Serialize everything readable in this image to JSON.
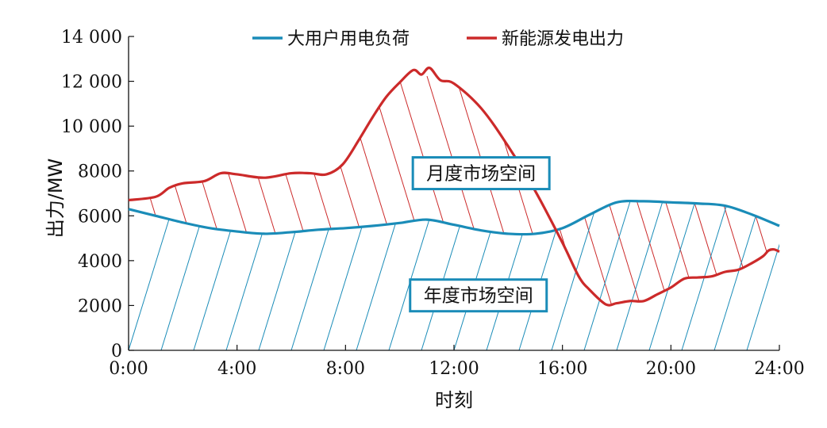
{
  "chart_data": {
    "type": "line",
    "xlabel": "时刻",
    "ylabel": "出力/MW",
    "xlim": [
      0,
      24
    ],
    "ylim": [
      0,
      14000
    ],
    "x_ticks": [
      {
        "v": 0,
        "label": "0:00"
      },
      {
        "v": 4,
        "label": "4:00"
      },
      {
        "v": 8,
        "label": "8:00"
      },
      {
        "v": 12,
        "label": "12:00"
      },
      {
        "v": 16,
        "label": "16:00"
      },
      {
        "v": 20,
        "label": "20:00"
      },
      {
        "v": 24,
        "label": "24:00"
      }
    ],
    "y_ticks": [
      {
        "v": 0,
        "label": "0"
      },
      {
        "v": 2000,
        "label": "2000"
      },
      {
        "v": 4000,
        "label": "4000"
      },
      {
        "v": 6000,
        "label": "6000"
      },
      {
        "v": 8000,
        "label": "8000"
      },
      {
        "v": 10000,
        "label": "10 000"
      },
      {
        "v": 12000,
        "label": "12 000"
      },
      {
        "v": 14000,
        "label": "14 000"
      }
    ],
    "legend_position": "top",
    "series": [
      {
        "name": "大用户用电负荷",
        "color": "#1a8cb8",
        "points": [
          [
            0,
            6300
          ],
          [
            1,
            6000
          ],
          [
            2,
            5700
          ],
          [
            3,
            5450
          ],
          [
            4,
            5300
          ],
          [
            5,
            5200
          ],
          [
            6,
            5270
          ],
          [
            7,
            5380
          ],
          [
            8,
            5450
          ],
          [
            9,
            5550
          ],
          [
            10,
            5680
          ],
          [
            11,
            5830
          ],
          [
            12,
            5600
          ],
          [
            13,
            5350
          ],
          [
            14,
            5200
          ],
          [
            15,
            5200
          ],
          [
            16,
            5450
          ],
          [
            17,
            6050
          ],
          [
            18,
            6600
          ],
          [
            19,
            6650
          ],
          [
            20,
            6600
          ],
          [
            21,
            6550
          ],
          [
            22,
            6450
          ],
          [
            23,
            6050
          ],
          [
            24,
            5550
          ]
        ]
      },
      {
        "name": "新能源发电出力",
        "color": "#cc2a2a",
        "points": [
          [
            0,
            6700
          ],
          [
            1,
            6850
          ],
          [
            1.5,
            7250
          ],
          [
            2,
            7450
          ],
          [
            2.8,
            7550
          ],
          [
            3.4,
            7900
          ],
          [
            4,
            7850
          ],
          [
            5,
            7700
          ],
          [
            6,
            7900
          ],
          [
            6.7,
            7900
          ],
          [
            7.3,
            7850
          ],
          [
            7.9,
            8300
          ],
          [
            8.5,
            9400
          ],
          [
            9,
            10400
          ],
          [
            9.5,
            11300
          ],
          [
            10,
            11950
          ],
          [
            10.5,
            12500
          ],
          [
            10.8,
            12300
          ],
          [
            11.1,
            12600
          ],
          [
            11.5,
            12050
          ],
          [
            12,
            11900
          ],
          [
            13,
            10800
          ],
          [
            14,
            9100
          ],
          [
            15,
            7100
          ],
          [
            16,
            4800
          ],
          [
            16.6,
            3300
          ],
          [
            17,
            2700
          ],
          [
            17.6,
            2050
          ],
          [
            18,
            2100
          ],
          [
            18.5,
            2200
          ],
          [
            19,
            2200
          ],
          [
            19.5,
            2500
          ],
          [
            20,
            2800
          ],
          [
            20.5,
            3200
          ],
          [
            21,
            3250
          ],
          [
            21.5,
            3300
          ],
          [
            22,
            3500
          ],
          [
            22.5,
            3600
          ],
          [
            23,
            3900
          ],
          [
            23.4,
            4200
          ],
          [
            23.6,
            4450
          ],
          [
            23.8,
            4500
          ],
          [
            24,
            4400
          ]
        ]
      }
    ],
    "annotations": [
      {
        "text": "月度市场空间",
        "x": 13.0,
        "y": 7900,
        "border": "#1a8cb8"
      },
      {
        "text": "年度市场空间",
        "x": 12.9,
        "y": 2450,
        "border": "#1a8cb8"
      }
    ]
  }
}
